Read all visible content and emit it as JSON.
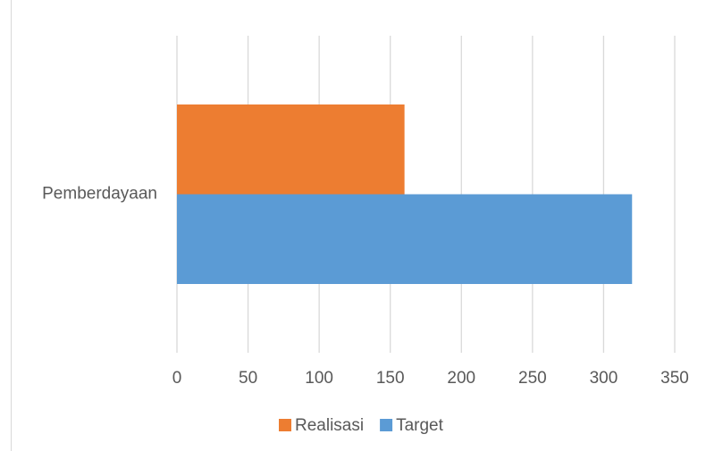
{
  "chart_data": {
    "type": "bar",
    "orientation": "horizontal",
    "categories": [
      "Pemberdayaan"
    ],
    "series": [
      {
        "name": "Realisasi",
        "color": "#ed7d31",
        "values": [
          160
        ]
      },
      {
        "name": "Target",
        "color": "#5b9bd5",
        "values": [
          320
        ]
      }
    ],
    "xlim": [
      0,
      350
    ],
    "xticks": [
      0,
      50,
      100,
      150,
      200,
      250,
      300,
      350
    ],
    "grid": true,
    "legend": "bottom"
  }
}
